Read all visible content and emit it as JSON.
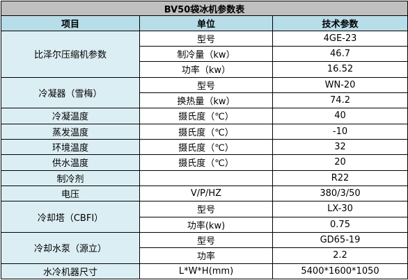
{
  "title": "BV50袋冰机参数表",
  "headers": [
    "项目",
    "单位",
    "技术参数"
  ],
  "groups": {
    "compressor": {
      "item": "比泽尔压缩机参数",
      "rows": [
        {
          "unit": "型号",
          "value": "4GE-23"
        },
        {
          "unit": "制冷量（kw）",
          "value": "46.7"
        },
        {
          "unit": "功率（kw）",
          "value": "16.52"
        }
      ]
    },
    "condenser": {
      "item": "冷凝器（雪梅）",
      "rows": [
        {
          "unit": "型号",
          "value": "WN-20"
        },
        {
          "unit": "换热量（kw）",
          "value": "74.2"
        }
      ]
    },
    "cond_temp": {
      "item": "冷凝温度",
      "unit": "摄氏度（℃）",
      "value": "40"
    },
    "evap_temp": {
      "item": "蒸发温度",
      "unit": "摄氏度（℃）",
      "value": "-10"
    },
    "env_temp": {
      "item": "环境温度",
      "unit": "摄氏度（℃）",
      "value": "32"
    },
    "water_temp": {
      "item": "供水温度",
      "unit": "摄氏度（℃）",
      "value": "20"
    },
    "refrigerant": {
      "item": "制冷剂",
      "unit": "",
      "value": "R22"
    },
    "voltage": {
      "item": "电压",
      "unit": "V/P/HZ",
      "value": "380/3/50"
    },
    "cooling_tower": {
      "item": "冷却塔（CBFI）",
      "rows": [
        {
          "unit": "型号",
          "value": "LX-30"
        },
        {
          "unit": "功率(kw)",
          "value": "0.75"
        }
      ]
    },
    "pump": {
      "item": "冷却水泵（源立）",
      "rows": [
        {
          "unit": "型号",
          "value": "GD65-19"
        },
        {
          "unit": "功率",
          "value": "2.2"
        }
      ]
    },
    "dimensions": {
      "item": "水冷机器尺寸",
      "unit": "L*W*H(mm)",
      "value": "5400*1600*1050"
    }
  }
}
